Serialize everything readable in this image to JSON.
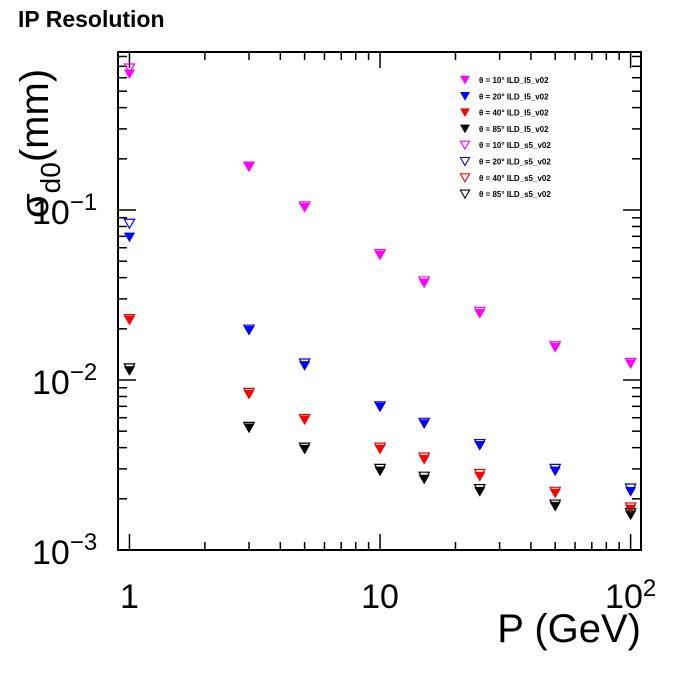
{
  "title": "IP Resolution",
  "chart_data": {
    "type": "scatter",
    "title": "IP Resolution",
    "xlabel": "P (GeV)",
    "ylabel": "σ_d0(mm)",
    "xscale": "log",
    "yscale": "log",
    "xlim": [
      0.9,
      110
    ],
    "ylim": [
      0.001,
      0.85
    ],
    "grid": false,
    "legend_position": "top-right",
    "x_ticks": [
      {
        "value": 1,
        "label": "1"
      },
      {
        "value": 10,
        "label": "10"
      },
      {
        "value": 100,
        "label": "10",
        "exp": "2"
      }
    ],
    "y_ticks": [
      {
        "value": 0.001,
        "label": "10",
        "exp": "−3"
      },
      {
        "value": 0.01,
        "label": "10",
        "exp": "−2"
      },
      {
        "value": 0.1,
        "label": "10",
        "exp": "−1"
      }
    ],
    "x": [
      1,
      3,
      5,
      10,
      15,
      25,
      50,
      100
    ],
    "series": [
      {
        "name": "θ = 10° ILD_l5_v02",
        "marker": "filled",
        "color": "#ff00ff",
        "values": [
          0.63,
          0.18,
          0.103,
          0.054,
          0.037,
          0.0245,
          0.0155,
          0.0124
        ]
      },
      {
        "name": "θ = 20° ILD_l5_v02",
        "marker": "filled",
        "color": "#0000ff",
        "values": [
          0.069,
          0.0195,
          0.0121,
          0.0069,
          0.0055,
          0.0041,
          0.0029,
          0.0022
        ]
      },
      {
        "name": "θ = 40° ILD_l5_v02",
        "marker": "filled",
        "color": "#ff0000",
        "values": [
          0.0224,
          0.0082,
          0.0058,
          0.0039,
          0.0034,
          0.0027,
          0.00215,
          0.00173
        ]
      },
      {
        "name": "θ = 85° ILD_l5_v02",
        "marker": "filled",
        "color": "#000000",
        "values": [
          0.0113,
          0.0052,
          0.0039,
          0.0029,
          0.0026,
          0.0022,
          0.0018,
          0.0016
        ]
      },
      {
        "name": "θ = 10° ILD_s5_v02",
        "marker": "open",
        "color": "#ff00ff",
        "values": [
          0.68,
          0.18,
          0.105,
          0.055,
          0.038,
          0.0252,
          0.0158,
          0.0126
        ]
      },
      {
        "name": "θ = 20° ILD_s5_v02",
        "marker": "open",
        "color": "#0000ff",
        "values": [
          0.083,
          0.0198,
          0.0125,
          0.007,
          0.0056,
          0.0042,
          0.003,
          0.0023
        ]
      },
      {
        "name": "θ = 40° ILD_s5_v02",
        "marker": "open",
        "color": "#ff0000",
        "values": [
          0.0228,
          0.0084,
          0.0059,
          0.004,
          0.0035,
          0.0028,
          0.0022,
          0.00178
        ]
      },
      {
        "name": "θ = 85° ILD_s5_v02",
        "marker": "open",
        "color": "#000000",
        "values": [
          0.0117,
          0.0053,
          0.004,
          0.003,
          0.0027,
          0.00228,
          0.00185,
          0.00165
        ]
      }
    ]
  }
}
